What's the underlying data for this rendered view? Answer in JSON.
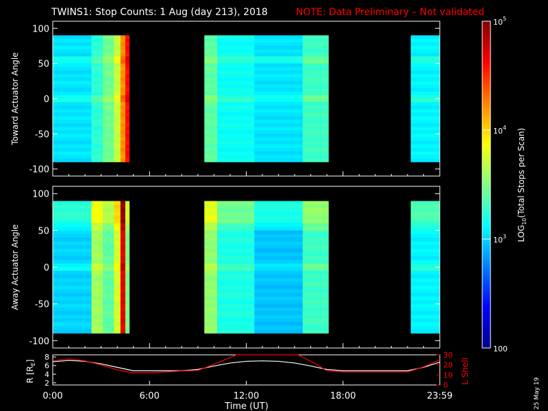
{
  "title": {
    "main": "TWINS1: Stop Counts:  1 Aug (day 213), 2018",
    "note": "NOTE: Data Preliminary – Not validated",
    "note_color": "#ff0000"
  },
  "colorbar": {
    "label_prefix": "LOG",
    "label_sub": "10",
    "label_suffix": "(Total Stops per Scan)",
    "ticks": [
      {
        "base": "10",
        "exp": "5",
        "value": 100000
      },
      {
        "base": "10",
        "exp": "4",
        "value": 10000
      },
      {
        "base": "10",
        "exp": "3",
        "value": 1000
      },
      {
        "base": "100",
        "exp": "",
        "value": 100
      }
    ],
    "colors": [
      "#00008f",
      "#0000ff",
      "#0080ff",
      "#00ffff",
      "#80ff80",
      "#ffff00",
      "#ff8000",
      "#ff0000",
      "#800000"
    ]
  },
  "date_stamp": "25 May 19",
  "chart_data": [
    {
      "type": "heatmap",
      "name": "toward",
      "ylabel": "Toward Actuator Angle",
      "ylim": [
        -110,
        110
      ],
      "yticks": [
        "100",
        "50",
        "0",
        "-50",
        "-100"
      ],
      "ytick_values": [
        100,
        50,
        0,
        -50,
        -100
      ],
      "xlim": [
        0,
        24
      ],
      "data_coverage_hours": [
        [
          0,
          4.75
        ],
        [
          9.4,
          17.1
        ],
        [
          22.2,
          24
        ]
      ],
      "angle_range": [
        -90,
        90
      ],
      "bands": [
        {
          "start": 0.0,
          "end": 2.4,
          "level": 3.05
        },
        {
          "start": 2.4,
          "end": 3.1,
          "level": 3.25
        },
        {
          "start": 3.1,
          "end": 3.8,
          "level": 3.45
        },
        {
          "start": 3.8,
          "end": 4.2,
          "level": 3.7
        },
        {
          "start": 4.2,
          "end": 4.5,
          "level": 4.2
        },
        {
          "start": 4.5,
          "end": 4.75,
          "level": 4.6
        },
        {
          "start": 9.4,
          "end": 10.2,
          "level": 3.4
        },
        {
          "start": 10.2,
          "end": 12.5,
          "level": 3.15
        },
        {
          "start": 12.5,
          "end": 15.5,
          "level": 3.05
        },
        {
          "start": 15.5,
          "end": 17.1,
          "level": 3.3
        },
        {
          "start": 22.2,
          "end": 24.0,
          "level": 3.1
        }
      ]
    },
    {
      "type": "heatmap",
      "name": "away",
      "ylabel": "Away Actuator Angle",
      "ylim": [
        -110,
        110
      ],
      "yticks": [
        "100",
        "50",
        "0",
        "-50",
        "-100"
      ],
      "ytick_values": [
        100,
        50,
        0,
        -50,
        -100
      ],
      "xlim": [
        0,
        24
      ],
      "data_coverage_hours": [
        [
          0,
          4.75
        ],
        [
          9.4,
          17.1
        ],
        [
          22.2,
          24
        ]
      ],
      "angle_range": [
        -90,
        90
      ],
      "bands": [
        {
          "start": 0.0,
          "end": 2.4,
          "level": 3.0
        },
        {
          "start": 2.4,
          "end": 3.1,
          "level": 3.6
        },
        {
          "start": 3.1,
          "end": 3.8,
          "level": 3.4
        },
        {
          "start": 3.8,
          "end": 4.2,
          "level": 3.75
        },
        {
          "start": 4.2,
          "end": 4.5,
          "level": 4.7
        },
        {
          "start": 4.5,
          "end": 4.75,
          "level": 3.5
        },
        {
          "start": 9.4,
          "end": 10.2,
          "level": 3.55
        },
        {
          "start": 10.2,
          "end": 12.5,
          "level": 3.2
        },
        {
          "start": 12.5,
          "end": 15.5,
          "level": 2.95
        },
        {
          "start": 15.5,
          "end": 17.1,
          "level": 3.3
        },
        {
          "start": 22.2,
          "end": 24.0,
          "level": 3.1
        }
      ]
    },
    {
      "type": "line",
      "name": "orbit",
      "ylabel_left": "R [R",
      "ylabel_left_sub": "E",
      "ylabel_left_end": "]",
      "ylabel_right": "L Shell",
      "ylabel_right_color": "#ff0000",
      "ylim_left": [
        1.5,
        8.5
      ],
      "ylim_right": [
        0,
        30
      ],
      "yticks_left": [
        "8",
        "6",
        "4",
        "2"
      ],
      "ytick_values_left": [
        8,
        6,
        4,
        2
      ],
      "yticks_right": [
        "30",
        "20",
        "10",
        "0"
      ],
      "ytick_values_right": [
        30,
        20,
        10,
        0
      ],
      "xlabel": "Time (UT)",
      "xticks": [
        "0:00",
        "6:00",
        "12:00",
        "18:00",
        "23:59"
      ],
      "xtick_values": [
        0,
        6,
        12,
        18,
        24
      ],
      "series": [
        {
          "name": "R",
          "color": "#ffffff",
          "x": [
            0,
            1,
            2,
            3,
            4,
            5,
            6,
            7,
            8,
            9,
            10,
            11,
            12,
            13,
            14,
            15,
            16,
            17,
            18,
            19,
            20,
            21,
            22,
            23,
            24
          ],
          "y": [
            6.9,
            7.2,
            7.0,
            6.4,
            5.6,
            4.8,
            4.8,
            4.8,
            4.8,
            5.1,
            5.9,
            6.6,
            7.0,
            7.1,
            7.0,
            6.6,
            5.9,
            5.1,
            4.8,
            4.8,
            4.8,
            4.8,
            4.8,
            5.6,
            6.8
          ]
        },
        {
          "name": "L Shell",
          "color": "#ff0000",
          "x": [
            0,
            1,
            2,
            3,
            4,
            5,
            6,
            7,
            8,
            9,
            9.6,
            10.5,
            11.4,
            15.2,
            16.2,
            17,
            18,
            19,
            20,
            21,
            22,
            23,
            24
          ],
          "y": [
            24,
            26,
            24,
            20,
            15,
            12,
            12,
            13,
            14,
            14.5,
            18,
            24,
            30,
            30,
            22,
            14,
            13,
            13,
            13,
            13,
            13,
            18,
            25
          ]
        }
      ]
    }
  ]
}
